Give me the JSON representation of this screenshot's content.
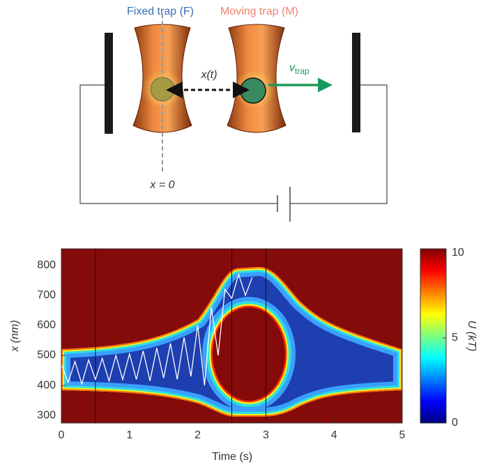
{
  "diagram": {
    "fixed_label": "Fixed trap (F)",
    "moving_label": "Moving trap (M)",
    "separation_label": "x(t)",
    "velocity_label": {
      "main": "v",
      "sub": "trap"
    },
    "origin_label": "x = 0"
  },
  "chart_data": {
    "type": "heatmap",
    "xlabel": "Time (s)",
    "ylabel": "x (nm)",
    "xlim": [
      0,
      5
    ],
    "xticks": [
      0,
      1,
      2,
      3,
      4,
      5
    ],
    "ylim": [
      275,
      855
    ],
    "yticks": [
      300,
      400,
      500,
      600,
      700,
      800
    ],
    "vlines": [
      0.5,
      2.5,
      3
    ],
    "series": [
      {
        "color": "#ffffff",
        "x": [
          0,
          0.1,
          0.2,
          0.3,
          0.4,
          0.5,
          0.6,
          0.7,
          0.8,
          0.9,
          1.0,
          1.1,
          1.2,
          1.3,
          1.4,
          1.5,
          1.6,
          1.7,
          1.8,
          1.9,
          2.0,
          2.1,
          2.2,
          2.3,
          2.4,
          2.5,
          2.6,
          2.7,
          2.8
        ],
        "values": [
          470,
          410,
          480,
          405,
          485,
          420,
          490,
          415,
          500,
          420,
          505,
          420,
          515,
          415,
          525,
          425,
          540,
          420,
          560,
          430,
          600,
          400,
          660,
          500,
          720,
          690,
          770,
          700,
          760
        ]
      }
    ],
    "colorbar": {
      "label": "U (kT)",
      "lim": [
        0,
        10
      ],
      "ticks": [
        0,
        5,
        10
      ],
      "colors": [
        "#00007f",
        "#0000ff",
        "#007fff",
        "#00ffff",
        "#7fff7f",
        "#ffff00",
        "#ff7f00",
        "#ff0000",
        "#7f0000"
      ]
    }
  }
}
